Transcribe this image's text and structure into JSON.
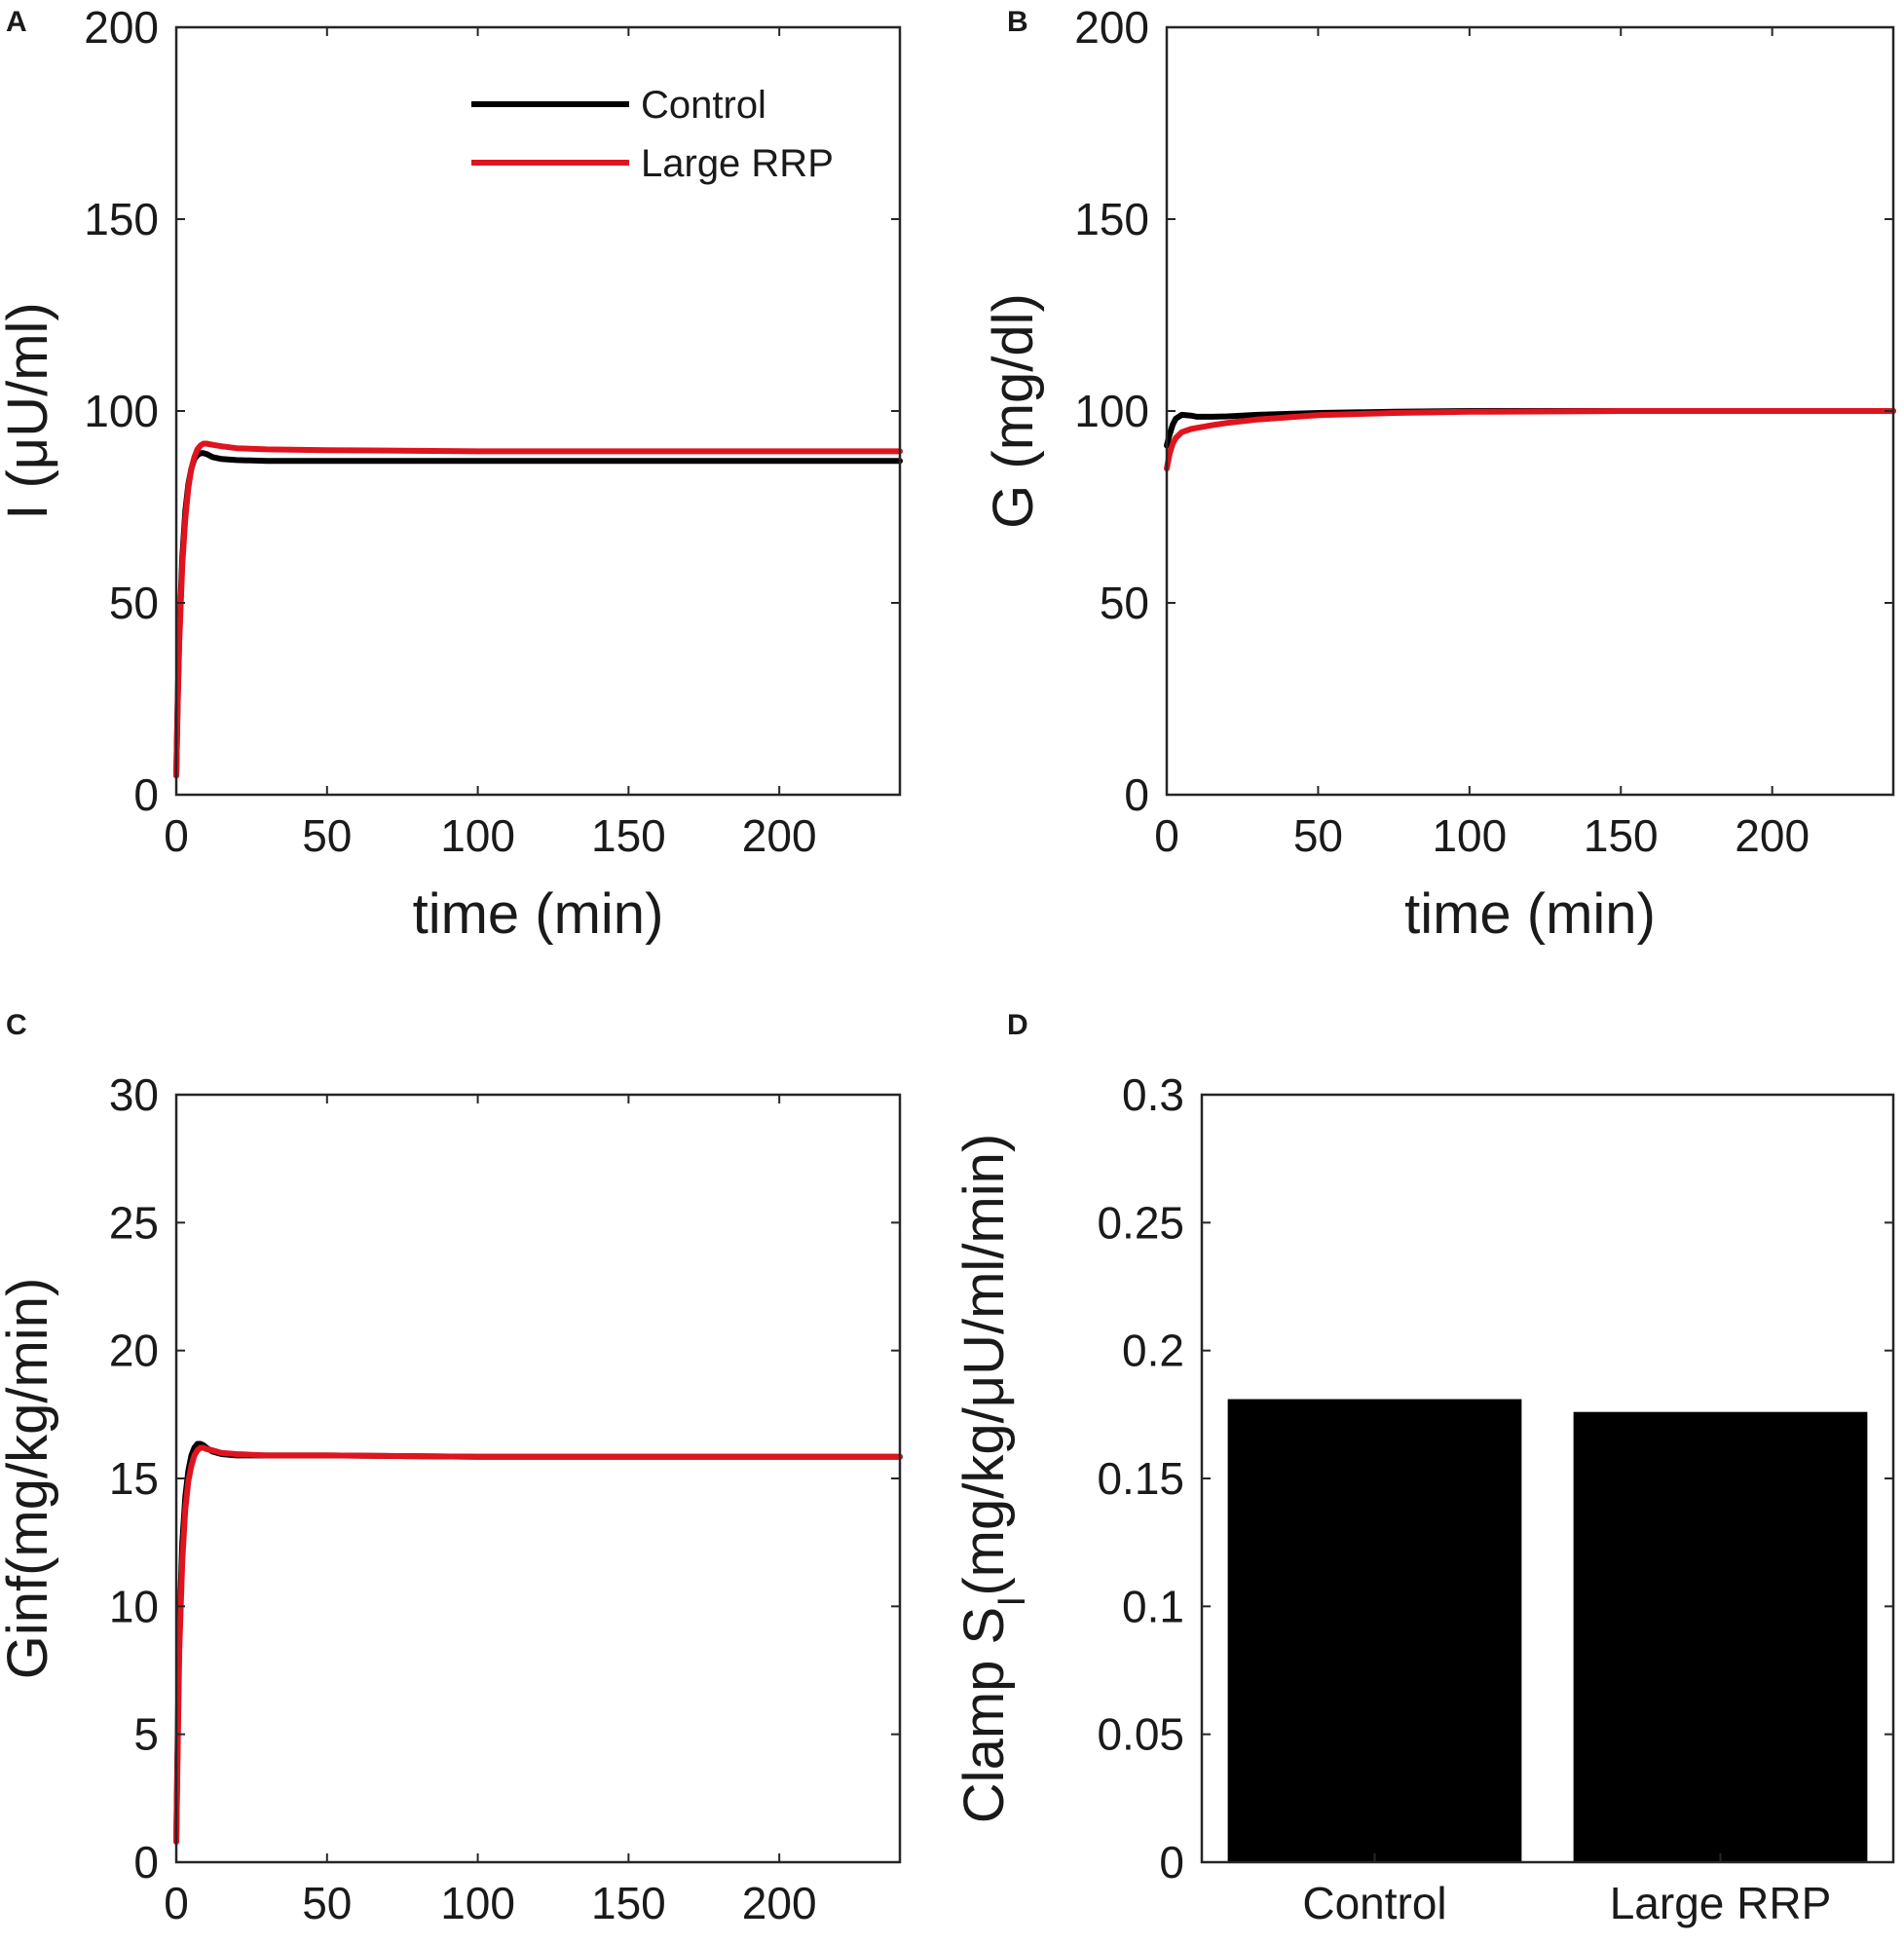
{
  "chart_data": [
    {
      "panel": "A",
      "type": "line",
      "xlabel": "time (min)",
      "ylabel": "I (μU/ml)",
      "xlim": [
        0,
        240
      ],
      "ylim": [
        0,
        200
      ],
      "xticks": [
        0,
        50,
        100,
        150,
        200
      ],
      "yticks": [
        0,
        50,
        100,
        150,
        200
      ],
      "legend": "top-right",
      "series": [
        {
          "name": "Control",
          "color": "#000000",
          "x": [
            0,
            0.5,
            1,
            2,
            3,
            4,
            5,
            6,
            7,
            8,
            9,
            10,
            12,
            15,
            20,
            30,
            50,
            100,
            150,
            200,
            240
          ],
          "y": [
            5,
            25,
            42,
            62,
            74,
            81,
            85,
            87.5,
            88.5,
            89,
            89,
            88.8,
            88,
            87.5,
            87.2,
            87,
            87,
            87,
            87,
            87,
            87
          ]
        },
        {
          "name": "Large RRP",
          "color": "#e0141e",
          "x": [
            0,
            0.5,
            1,
            2,
            3,
            4,
            5,
            6,
            7,
            8,
            9,
            10,
            12,
            15,
            20,
            30,
            50,
            100,
            150,
            200,
            240
          ],
          "y": [
            5,
            24,
            40,
            60,
            72,
            80,
            85,
            88,
            90,
            91,
            91.5,
            91.5,
            91.2,
            90.8,
            90.3,
            90,
            89.8,
            89.5,
            89.5,
            89.5,
            89.5
          ]
        }
      ]
    },
    {
      "panel": "B",
      "type": "line",
      "xlabel": "time (min)",
      "ylabel": "G (mg/dl)",
      "xlim": [
        0,
        240
      ],
      "ylim": [
        0,
        200
      ],
      "xticks": [
        0,
        50,
        100,
        150,
        200
      ],
      "yticks": [
        0,
        50,
        100,
        150,
        200
      ],
      "series": [
        {
          "name": "Control",
          "color": "#000000",
          "x": [
            0,
            1,
            2,
            3,
            5,
            8,
            10,
            15,
            20,
            30,
            50,
            75,
            100,
            150,
            200,
            240
          ],
          "y": [
            91,
            94,
            96.5,
            98,
            99,
            98.8,
            98.5,
            98.5,
            98.6,
            99,
            99.5,
            99.8,
            100,
            100,
            100,
            100
          ]
        },
        {
          "name": "Large RRP",
          "color": "#e0141e",
          "x": [
            0,
            1,
            2,
            3,
            5,
            8,
            10,
            15,
            20,
            30,
            50,
            75,
            100,
            150,
            200,
            240
          ],
          "y": [
            85,
            89,
            91.5,
            93,
            94.5,
            95.3,
            95.6,
            96.3,
            96.9,
            97.8,
            98.9,
            99.5,
            99.8,
            100,
            100,
            100
          ]
        }
      ]
    },
    {
      "panel": "C",
      "type": "line",
      "xlabel": "",
      "ylabel": "Ginf(mg/kg/min)",
      "xlim": [
        0,
        240
      ],
      "ylim": [
        0,
        30
      ],
      "xticks": [
        0,
        50,
        100,
        150,
        200
      ],
      "yticks": [
        0,
        5,
        10,
        15,
        20,
        25,
        30
      ],
      "series": [
        {
          "name": "Control",
          "color": "#000000",
          "x": [
            0,
            0.5,
            1,
            2,
            3,
            4,
            5,
            6,
            7,
            8,
            9,
            10,
            12,
            15,
            20,
            30,
            50,
            100,
            150,
            200,
            240
          ],
          "y": [
            0.8,
            5,
            9,
            12.5,
            14.3,
            15.3,
            15.9,
            16.2,
            16.35,
            16.35,
            16.3,
            16.2,
            16.05,
            15.95,
            15.9,
            15.9,
            15.9,
            15.85,
            15.85,
            15.85,
            15.85
          ]
        },
        {
          "name": "Large RRP",
          "color": "#e0141e",
          "x": [
            0,
            0.5,
            1,
            2,
            3,
            4,
            5,
            6,
            7,
            8,
            9,
            10,
            12,
            15,
            20,
            30,
            50,
            100,
            150,
            200,
            240
          ],
          "y": [
            0.8,
            4.5,
            8.3,
            11.8,
            13.8,
            14.9,
            15.5,
            15.9,
            16.1,
            16.2,
            16.2,
            16.15,
            16.1,
            16.0,
            15.95,
            15.9,
            15.9,
            15.85,
            15.85,
            15.85,
            15.85
          ]
        }
      ]
    },
    {
      "panel": "D",
      "type": "bar",
      "xlabel": "",
      "ylabel": "Clamp S",
      "ylabel_sub": "I",
      "ylabel_rest": "(mg/kg/μU/ml/min)",
      "categories": [
        "Control",
        "Large RRP"
      ],
      "values": [
        0.181,
        0.176
      ],
      "color": "#000000",
      "ylim": [
        0,
        0.3
      ],
      "yticks": [
        0,
        0.05,
        0.1,
        0.15,
        0.2,
        0.25,
        0.3
      ],
      "ytick_labels": [
        "0",
        "0.05",
        "0.1",
        "0.15",
        "0.2",
        "0.25",
        "0.3"
      ]
    }
  ]
}
